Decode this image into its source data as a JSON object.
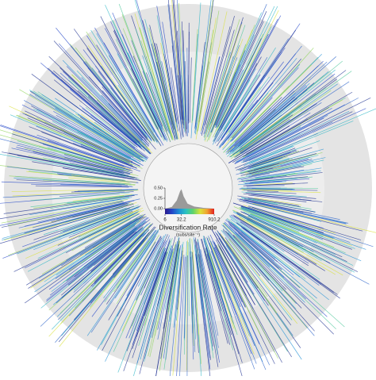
{
  "chart_data": {
    "type": "area",
    "title": "Diversification Rate",
    "subtitle": "(subs/site⁻¹)",
    "x": [
      6,
      12,
      20,
      28,
      32.2,
      40,
      60,
      120,
      300,
      910.2
    ],
    "values": [
      0,
      0.04,
      0.2,
      0.42,
      0.47,
      0.3,
      0.12,
      0.05,
      0.02,
      0
    ],
    "color": "#8a8a8a",
    "xlim": [
      6,
      910.2
    ],
    "xscale": "log",
    "xticks": [
      6,
      32.2,
      910.2
    ],
    "ylim": [
      0,
      0.5
    ],
    "yticks": [
      {
        "value": 0,
        "label": "0.00"
      },
      {
        "value": 0.25,
        "label": "0.25"
      },
      {
        "value": 0.5,
        "label": "0.50"
      }
    ],
    "colorscale": [
      "#2a1a8c",
      "#2346c8",
      "#1e8fd6",
      "#2cc2c0",
      "#5fd36a",
      "#d9e23a",
      "#f0a030",
      "#e02020"
    ]
  }
}
